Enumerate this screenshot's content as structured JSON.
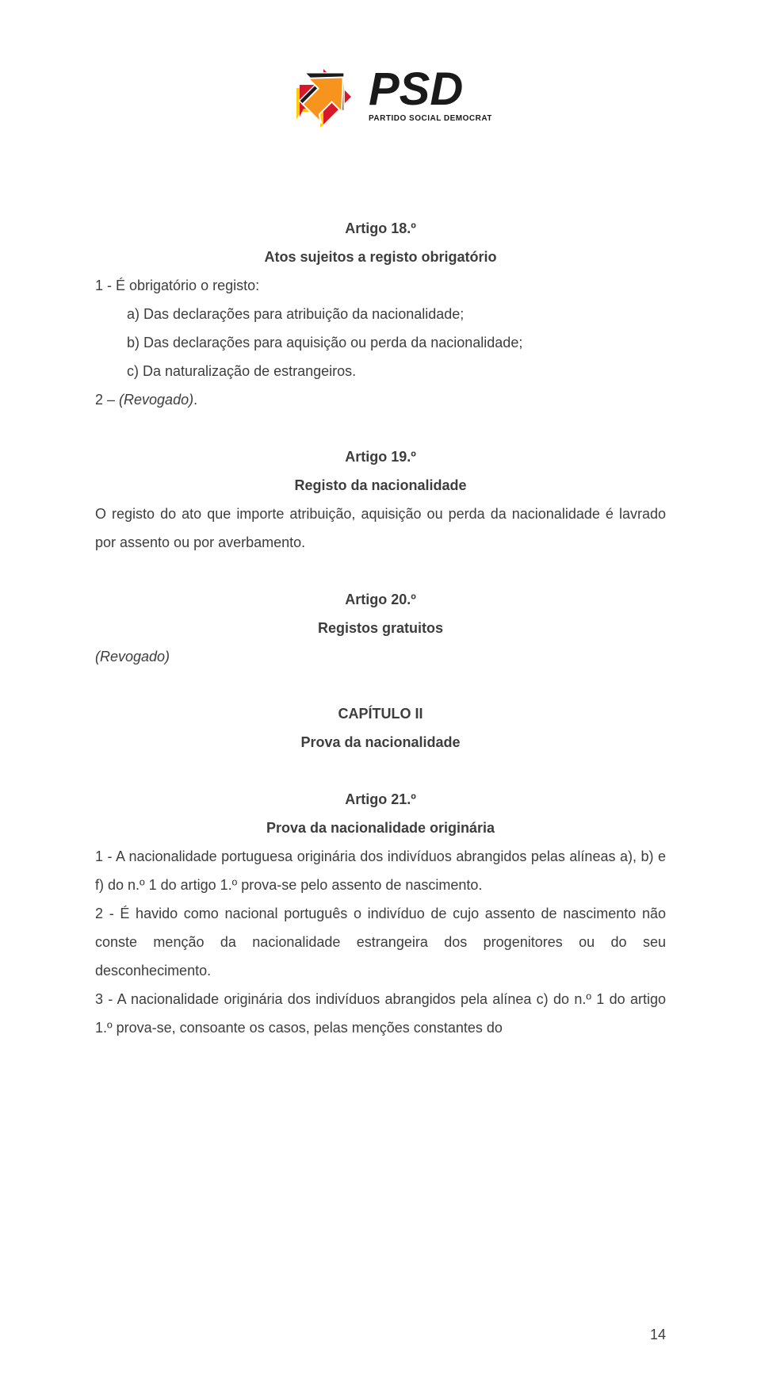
{
  "logo": {
    "main_text": "PSD",
    "sub_text": "PARTIDO SOCIAL DEMOCRATA",
    "arrow_colors": {
      "orange": "#f7941e",
      "red": "#d7182a",
      "yellow": "#ffcb05",
      "black": "#1a1a1a"
    },
    "text_color": "#1a1a1a"
  },
  "article18": {
    "heading": "Artigo 18.º",
    "subtitle": "Atos sujeitos a registo obrigatório",
    "intro": "1 - É obrigatório o registo:",
    "item_a": "a) Das declarações para atribuição da nacionalidade;",
    "item_b": "b) Das declarações para aquisição ou perda da nacionalidade;",
    "item_c": "c) Da naturalização de estrangeiros.",
    "line2": "2 – (Revogado)."
  },
  "article19": {
    "heading": "Artigo 19.º",
    "subtitle": "Registo da nacionalidade",
    "body": "O registo do ato que importe atribuição, aquisição ou perda da nacionalidade é lavrado por assento ou por averbamento."
  },
  "article20": {
    "heading": "Artigo 20.º",
    "subtitle": "Registos gratuitos",
    "revogado": "(Revogado)"
  },
  "chapter": {
    "heading": "CAPÍTULO II",
    "subtitle": "Prova da nacionalidade"
  },
  "article21": {
    "heading": "Artigo 21.º",
    "subtitle": "Prova da nacionalidade originária",
    "p1": "1 - A nacionalidade portuguesa originária dos indivíduos abrangidos pelas alíneas a), b) e f) do n.º 1 do artigo 1.º prova-se pelo assento de nascimento.",
    "p2": "2 - É havido como nacional português o indivíduo de cujo assento de nascimento não conste menção da nacionalidade estrangeira dos progenitores ou do seu desconhecimento.",
    "p3": "3 - A nacionalidade originária dos indivíduos abrangidos pela alínea c) do n.º 1 do artigo 1.º prova-se, consoante os casos, pelas menções constantes do"
  },
  "page_number": "14",
  "colors": {
    "text": "#3d3d3d",
    "background": "#ffffff"
  },
  "typography": {
    "body_fontsize": 18,
    "line_height": 2.0,
    "font_family": "Arial"
  }
}
